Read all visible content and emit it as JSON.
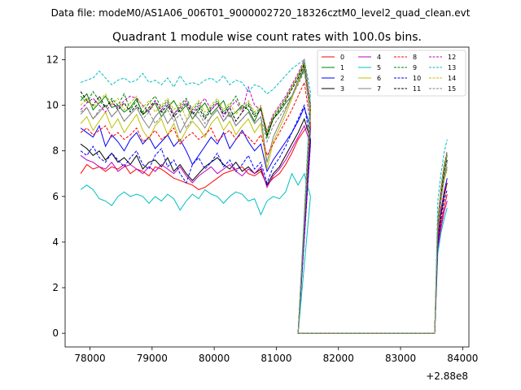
{
  "chart_data": {
    "type": "line",
    "suptitle": "Data file: modeM0/AS1A06_006T01_9000002720_18326cztM0_level2_quad_clean.evt",
    "title": "Quadrant 1 module wise count rates with 100.0s bins.",
    "xlabel": "",
    "ylabel": "",
    "x_offset_label": "+2.88e8",
    "xlim": [
      77600,
      84100
    ],
    "ylim": [
      -0.6,
      12.55
    ],
    "xticks": [
      78000,
      79000,
      80000,
      81000,
      82000,
      83000,
      84000
    ],
    "xtick_labels": [
      "78000",
      "79000",
      "80000",
      "81000",
      "82000",
      "83000",
      "84000"
    ],
    "yticks": [
      0,
      2,
      4,
      6,
      8,
      10,
      12
    ],
    "ytick_labels": [
      "0",
      "2",
      "4",
      "6",
      "8",
      "10",
      "12"
    ],
    "legend_location": "upper-right",
    "x_start": 77850,
    "x_step": 100,
    "x_gap_start": 81350,
    "x_gap_end": 83550,
    "x_end": 83750,
    "series": [
      {
        "name": "0",
        "color": "#ff0000",
        "dash": "solid",
        "pre": [
          7.0,
          7.4,
          7.2,
          7.3,
          7.1,
          7.3,
          7.2,
          7.4,
          7.0,
          7.2,
          7.1,
          6.9,
          7.3,
          7.2,
          7.0,
          6.8,
          6.7,
          6.6,
          6.5,
          6.3,
          6.4,
          6.6,
          6.8,
          7.0,
          7.1,
          7.2,
          7.3,
          7.0,
          6.9,
          7.1,
          6.5,
          6.8,
          7.0,
          7.4,
          7.9,
          8.5,
          8.9,
          9.2
        ],
        "post": [
          3.8,
          4.8,
          5.5,
          6.1
        ]
      },
      {
        "name": "1",
        "color": "#008000",
        "dash": "solid",
        "pre": [
          10.2,
          10.5,
          9.8,
          10.1,
          10.4,
          9.9,
          10.0,
          9.7,
          9.9,
          10.3,
          9.6,
          9.8,
          10.1,
          9.5,
          9.9,
          10.2,
          9.7,
          10.0,
          9.4,
          9.8,
          10.1,
          9.6,
          9.9,
          10.2,
          9.5,
          9.7,
          10.0,
          9.8,
          9.3,
          9.9,
          8.6,
          9.4,
          9.7,
          10.1,
          10.4,
          11.0,
          11.6,
          9.8
        ],
        "post": [
          4.8,
          6.2,
          7.2,
          7.8
        ]
      },
      {
        "name": "2",
        "color": "#0000ff",
        "dash": "solid",
        "pre": [
          9.0,
          8.8,
          8.6,
          9.1,
          8.2,
          8.7,
          8.4,
          8.0,
          8.5,
          8.8,
          8.3,
          8.6,
          8.1,
          8.4,
          8.7,
          8.2,
          8.5,
          8.0,
          7.4,
          7.8,
          8.2,
          8.6,
          8.3,
          8.8,
          8.1,
          8.5,
          8.9,
          8.4,
          8.0,
          8.3,
          7.1,
          7.6,
          8.0,
          8.4,
          8.8,
          9.3,
          9.9,
          9.0
        ],
        "post": [
          4.2,
          5.4,
          6.2,
          6.8
        ]
      },
      {
        "name": "3",
        "color": "#000000",
        "dash": "solid",
        "pre": [
          8.3,
          8.1,
          7.8,
          8.0,
          7.6,
          7.9,
          7.5,
          7.7,
          7.4,
          7.8,
          7.2,
          7.5,
          7.6,
          7.3,
          7.7,
          7.1,
          7.4,
          7.0,
          6.7,
          7.0,
          7.3,
          7.5,
          7.7,
          7.4,
          7.2,
          7.5,
          7.1,
          7.3,
          7.0,
          7.2,
          6.5,
          7.0,
          7.3,
          7.8,
          8.3,
          8.8,
          9.4,
          8.5
        ],
        "post": [
          4.0,
          5.2,
          6.0,
          6.6
        ]
      },
      {
        "name": "4",
        "color": "#bf00bf",
        "dash": "solid",
        "pre": [
          7.8,
          7.6,
          7.5,
          7.3,
          7.2,
          7.5,
          7.1,
          7.3,
          7.4,
          7.2,
          7.0,
          7.3,
          7.1,
          7.4,
          7.2,
          7.0,
          7.3,
          6.9,
          6.6,
          6.9,
          7.1,
          7.3,
          7.0,
          7.2,
          7.4,
          7.1,
          6.9,
          7.2,
          7.0,
          7.3,
          6.4,
          6.9,
          7.2,
          7.6,
          8.1,
          8.6,
          9.1,
          8.3
        ],
        "post": [
          3.7,
          4.6,
          5.3,
          5.8
        ]
      },
      {
        "name": "5",
        "color": "#00bfbf",
        "dash": "solid",
        "pre": [
          6.3,
          6.5,
          6.3,
          5.9,
          5.8,
          5.6,
          6.0,
          6.2,
          6.0,
          6.1,
          6.0,
          5.7,
          6.0,
          5.8,
          6.1,
          5.9,
          5.4,
          5.8,
          6.1,
          5.9,
          6.3,
          6.1,
          6.0,
          5.7,
          6.0,
          6.2,
          6.1,
          5.8,
          5.9,
          5.2,
          5.8,
          6.0,
          5.9,
          6.2,
          7.0,
          6.5,
          7.0,
          6.0
        ],
        "post": [
          3.5,
          4.4,
          5.0,
          5.5
        ]
      },
      {
        "name": "6",
        "color": "#bfbf00",
        "dash": "solid",
        "pre": [
          9.2,
          9.5,
          8.9,
          9.3,
          9.7,
          9.0,
          9.4,
          8.8,
          9.2,
          9.6,
          8.9,
          8.5,
          9.1,
          9.4,
          8.7,
          9.2,
          8.4,
          8.9,
          9.3,
          9.0,
          8.6,
          9.2,
          9.5,
          8.9,
          9.3,
          8.7,
          9.1,
          9.4,
          8.8,
          9.2,
          7.2,
          8.4,
          9.0,
          9.6,
          10.3,
          11.0,
          11.8,
          9.7
        ],
        "post": [
          4.5,
          5.8,
          6.7,
          7.2
        ]
      },
      {
        "name": "7",
        "color": "#808080",
        "dash": "solid",
        "pre": [
          9.6,
          9.9,
          9.4,
          9.7,
          10.0,
          9.5,
          9.8,
          9.3,
          9.6,
          9.9,
          9.4,
          9.0,
          9.5,
          9.8,
          9.2,
          9.6,
          8.8,
          9.3,
          9.7,
          9.4,
          9.0,
          9.5,
          9.8,
          9.3,
          9.7,
          9.1,
          9.4,
          9.7,
          9.2,
          9.5,
          7.5,
          8.6,
          9.2,
          9.8,
          10.4,
          11.1,
          11.7,
          9.6
        ],
        "post": [
          4.6,
          5.9,
          6.8,
          7.3
        ]
      },
      {
        "name": "8",
        "color": "#ff0000",
        "dash": "dashed",
        "pre": [
          8.8,
          9.0,
          8.7,
          8.9,
          9.1,
          8.6,
          8.8,
          8.5,
          8.7,
          9.0,
          8.4,
          8.6,
          8.9,
          8.5,
          8.7,
          9.0,
          8.3,
          8.6,
          8.8,
          8.5,
          8.7,
          9.0,
          8.4,
          8.7,
          8.9,
          8.5,
          8.8,
          8.6,
          8.3,
          8.7,
          7.8,
          8.3,
          8.8,
          9.3,
          9.8,
          10.4,
          11.0,
          9.2
        ],
        "post": [
          4.1,
          5.3,
          6.1,
          6.6
        ]
      },
      {
        "name": "9",
        "color": "#008000",
        "dash": "dashed",
        "pre": [
          10.4,
          10.1,
          10.6,
          10.2,
          9.9,
          10.3,
          10.0,
          10.5,
          9.8,
          10.2,
          9.7,
          10.1,
          10.4,
          9.9,
          10.2,
          9.6,
          10.0,
          10.3,
          9.8,
          10.1,
          9.5,
          9.9,
          10.2,
          9.7,
          10.0,
          10.4,
          9.8,
          10.1,
          9.6,
          9.9,
          8.8,
          9.5,
          9.9,
          10.3,
          10.8,
          11.3,
          11.9,
          10.0
        ],
        "post": [
          4.9,
          6.3,
          7.3,
          7.9
        ]
      },
      {
        "name": "10",
        "color": "#0000ff",
        "dash": "dashed",
        "pre": [
          8.0,
          7.8,
          8.2,
          7.7,
          7.5,
          7.9,
          7.6,
          7.3,
          7.7,
          8.0,
          7.4,
          7.2,
          7.8,
          8.1,
          7.3,
          7.6,
          7.0,
          6.6,
          7.4,
          7.7,
          7.2,
          7.5,
          7.9,
          7.3,
          7.6,
          7.1,
          7.4,
          7.8,
          7.2,
          7.5,
          6.6,
          7.3,
          7.7,
          8.2,
          8.8,
          9.4,
          10.0,
          8.4
        ],
        "post": [
          3.9,
          5.0,
          5.8,
          6.3
        ]
      },
      {
        "name": "11",
        "color": "#000000",
        "dash": "dashed",
        "pre": [
          10.6,
          10.2,
          10.0,
          10.4,
          9.9,
          10.2,
          9.8,
          10.1,
          9.7,
          10.0,
          9.6,
          9.9,
          10.2,
          9.7,
          10.0,
          9.5,
          9.8,
          10.1,
          9.6,
          9.9,
          9.4,
          9.8,
          10.1,
          9.6,
          9.9,
          9.3,
          9.7,
          10.0,
          9.5,
          9.8,
          8.7,
          9.4,
          9.8,
          10.2,
          10.7,
          11.2,
          11.8,
          9.9
        ],
        "post": [
          4.7,
          6.1,
          7.0,
          7.6
        ]
      },
      {
        "name": "12",
        "color": "#bf00bf",
        "dash": "dashed",
        "pre": [
          9.8,
          10.1,
          10.3,
          10.0,
          9.7,
          10.1,
          9.9,
          10.2,
          10.4,
          10.3,
          10.0,
          9.7,
          10.2,
          9.8,
          10.1,
          9.6,
          9.9,
          10.2,
          9.7,
          10.0,
          10.3,
          9.8,
          10.1,
          9.5,
          9.9,
          10.2,
          9.7,
          10.8,
          10.0,
          9.8,
          8.9,
          9.6,
          10.0,
          10.4,
          10.9,
          11.4,
          12.0,
          10.1
        ],
        "post": [
          5.0,
          6.4,
          7.4,
          8.0
        ]
      },
      {
        "name": "13",
        "color": "#00bfbf",
        "dash": "dashed",
        "pre": [
          11.0,
          11.1,
          11.2,
          11.5,
          11.2,
          10.9,
          11.1,
          11.2,
          11.0,
          11.1,
          11.4,
          11.0,
          11.1,
          10.9,
          11.2,
          10.8,
          11.3,
          10.9,
          11.0,
          10.9,
          11.1,
          11.2,
          11.0,
          11.3,
          10.9,
          11.1,
          11.0,
          10.6,
          10.9,
          10.8,
          10.5,
          10.7,
          11.0,
          11.3,
          11.6,
          11.8,
          12.0,
          10.6
        ],
        "post": [
          5.8,
          7.0,
          7.9,
          8.5
        ]
      },
      {
        "name": "14",
        "color": "#bfbf00",
        "dash": "dashed",
        "pre": [
          10.0,
          10.3,
          9.9,
          10.2,
          10.5,
          10.0,
          10.3,
          9.8,
          10.1,
          10.4,
          9.9,
          10.2,
          9.7,
          10.0,
          10.3,
          9.8,
          10.1,
          9.4,
          9.9,
          10.2,
          9.7,
          10.0,
          10.3,
          9.8,
          10.1,
          9.6,
          9.9,
          10.2,
          9.7,
          10.0,
          8.8,
          9.5,
          9.9,
          10.3,
          10.8,
          11.3,
          11.9,
          9.9
        ],
        "post": [
          4.9,
          6.3,
          7.3,
          7.9
        ]
      },
      {
        "name": "15",
        "color": "#808080",
        "dash": "dashed",
        "pre": [
          9.7,
          9.9,
          9.4,
          9.8,
          10.0,
          9.5,
          9.8,
          9.3,
          9.6,
          9.9,
          9.4,
          9.7,
          9.2,
          9.5,
          9.8,
          9.3,
          9.6,
          9.0,
          9.4,
          9.7,
          9.2,
          9.5,
          9.8,
          9.3,
          9.6,
          9.1,
          9.4,
          9.7,
          9.2,
          9.5,
          8.4,
          9.1,
          9.5,
          9.9,
          10.4,
          10.9,
          11.5,
          9.5
        ],
        "post": [
          4.7,
          6.0,
          6.9,
          7.5
        ]
      }
    ]
  }
}
